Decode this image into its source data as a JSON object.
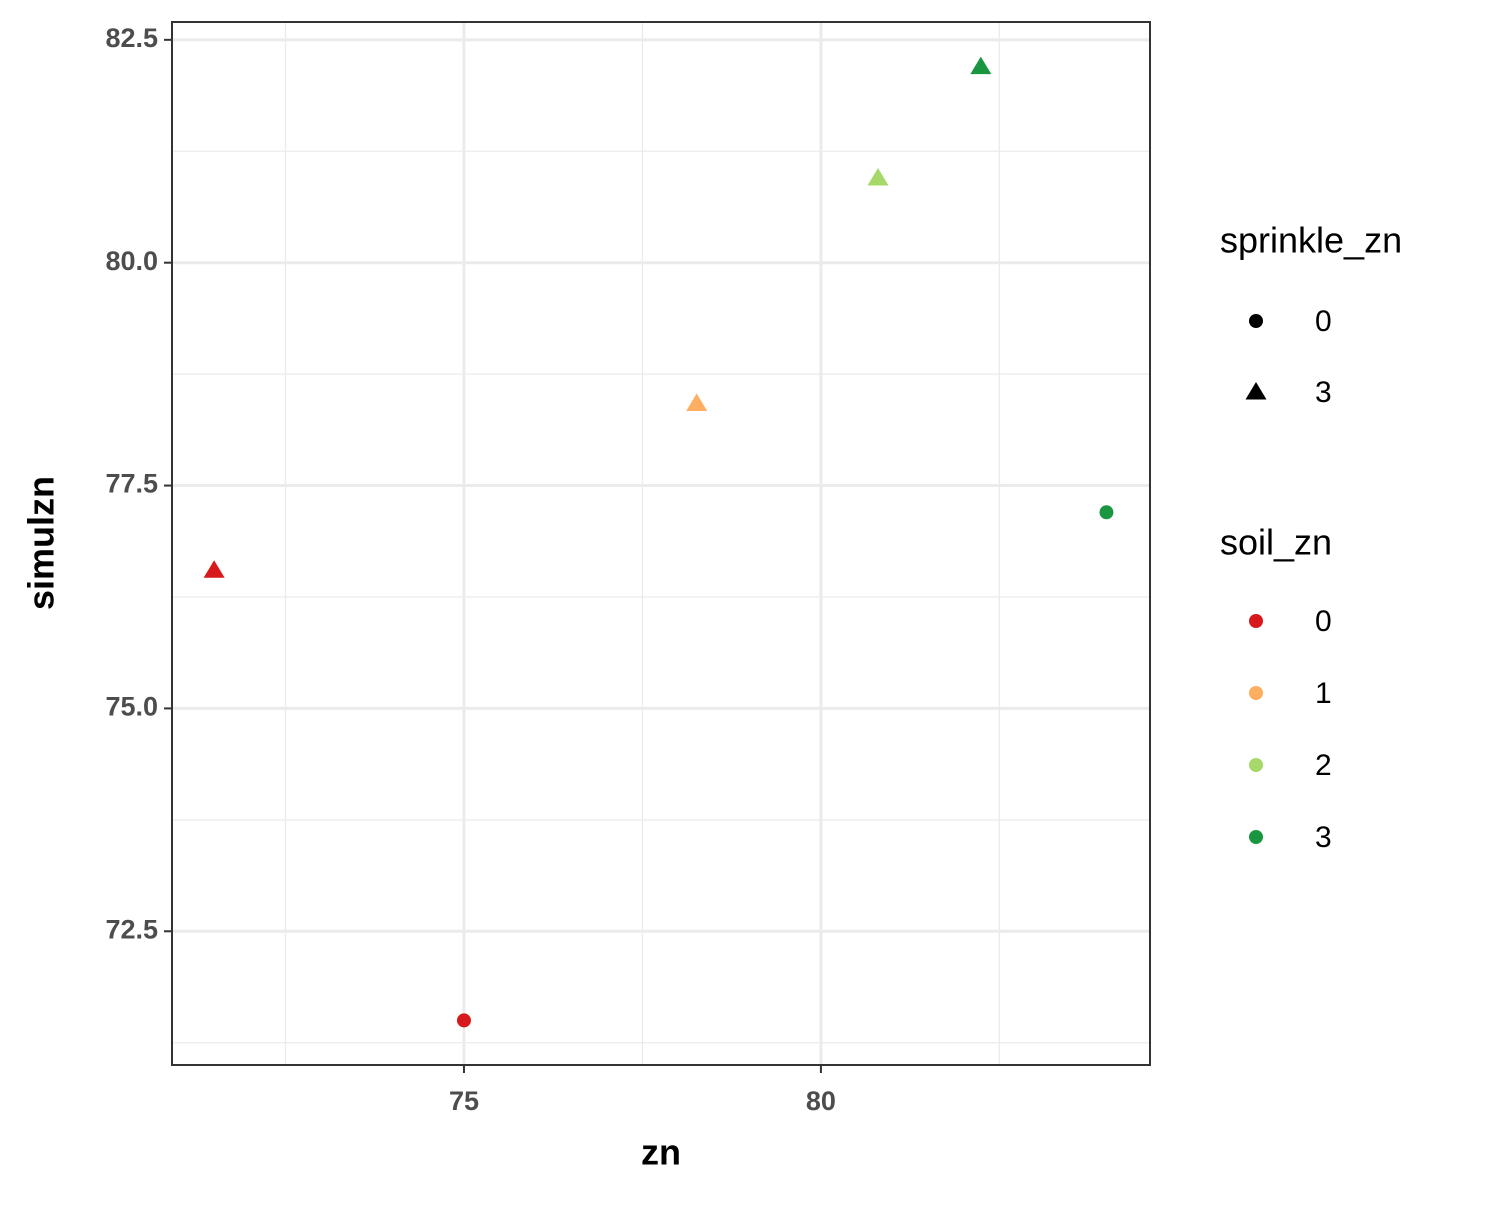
{
  "chart_data": {
    "type": "scatter",
    "x_label": "zn",
    "y_label": "simulzn",
    "x": [
      71.5,
      75,
      78.26,
      80.8,
      82.24,
      84.0
    ],
    "y": [
      76.55,
      71.5,
      78.42,
      80.95,
      82.2,
      77.2
    ],
    "sprinkle_zn": [
      3,
      0,
      3,
      3,
      3,
      0
    ],
    "soil_zn": [
      0,
      0,
      1,
      2,
      3,
      3
    ],
    "xlim": [
      70.91,
      84.61
    ],
    "ylim": [
      71.0,
      82.7
    ],
    "xticks": [
      75,
      80
    ],
    "yticks": [
      {
        "value": 72.5,
        "label": "72.5"
      },
      {
        "value": 75,
        "label": "75.0"
      },
      {
        "value": 77.5,
        "label": "77.5"
      },
      {
        "value": 80,
        "label": "80.0"
      },
      {
        "value": 82.5,
        "label": "82.5"
      }
    ],
    "x_minor_ticks": [
      72.5,
      77.5,
      82.5
    ],
    "y_minor_ticks": [
      71.25,
      73.75,
      76.25,
      78.75,
      81.25
    ],
    "grid": true,
    "shape_legend": {
      "title": "sprinkle_zn",
      "levels": [
        0,
        3
      ],
      "shapes": [
        "circle",
        "triangle"
      ]
    },
    "color_legend": {
      "title": "soil_zn",
      "levels": [
        0,
        1,
        2,
        3
      ],
      "colors": [
        "#d7191c",
        "#fdae61",
        "#a6d96a",
        "#1a9641"
      ]
    }
  }
}
